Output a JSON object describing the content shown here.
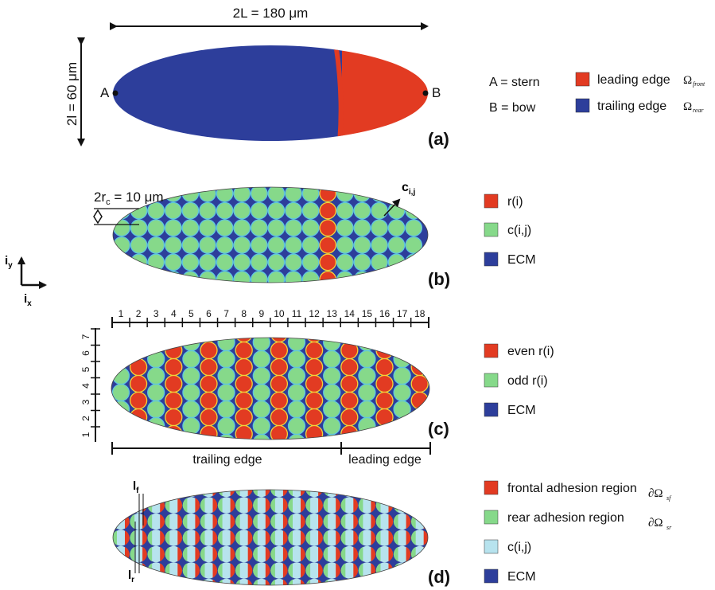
{
  "panel_a": {
    "panel_label": "(a)",
    "length_label": "2L =  180 μm",
    "width_label": "2l =  60 μm",
    "point_a": "A",
    "point_b": "B",
    "info": [
      "A = stern",
      "B = bow"
    ],
    "legend": [
      {
        "text": "leading edge",
        "symbol": "Ω",
        "sub": "front",
        "color": "#e23b22"
      },
      {
        "text": "trailing edge",
        "symbol": "Ω",
        "sub": "rear",
        "color": "#2d3e9b"
      }
    ]
  },
  "panel_b": {
    "panel_label": "(b)",
    "radius_label": "2r",
    "radius_sub": "c",
    "radius_value": " = 10 μm",
    "cell_label": "c",
    "cell_sub": "i,j",
    "legend": [
      {
        "text": "r(i)",
        "color": "#e23b22"
      },
      {
        "text": "c(i,j)",
        "color": "#86d98a"
      },
      {
        "text": "ECM",
        "color": "#2d3e9b"
      }
    ]
  },
  "axes": {
    "iy": "i",
    "iy_sub": "y",
    "ix": "i",
    "ix_sub": "x"
  },
  "panel_c": {
    "panel_label": "(c)",
    "columns": [
      "1",
      "2",
      "3",
      "4",
      "5",
      "6",
      "7",
      "8",
      "9",
      "10",
      "11",
      "12",
      "13",
      "14",
      "15",
      "16",
      "17",
      "18"
    ],
    "rows": [
      "1",
      "2",
      "3",
      "4",
      "5",
      "6",
      "7"
    ],
    "trailing_label": "trailing edge",
    "leading_label": "leading edge",
    "legend": [
      {
        "text": "even r(i)",
        "color": "#e23b22"
      },
      {
        "text": "odd r(i)",
        "color": "#86d98a"
      },
      {
        "text": "ECM",
        "color": "#2d3e9b"
      }
    ]
  },
  "panel_d": {
    "panel_label": "(d)",
    "lf": "l",
    "lf_sub": "f",
    "lr": "l",
    "lr_sub": "r",
    "legend": [
      {
        "text": "frontal adhesion region",
        "symbol": "∂Ω",
        "sub": "sf",
        "color": "#e23b22"
      },
      {
        "text": "rear adhesion region",
        "symbol": "∂Ω",
        "sub": "sr",
        "color": "#86d98a"
      },
      {
        "text": "c(i,j)",
        "color": "#b7e3ee"
      },
      {
        "text": "ECM",
        "color": "#2d3e9b"
      }
    ]
  },
  "colors": {
    "red": "#e23b22",
    "green": "#86d98a",
    "blue": "#2d3e9b",
    "light_blue": "#b7e3ee",
    "cyan": "#5fc6df",
    "yellow": "#f2d43a"
  }
}
